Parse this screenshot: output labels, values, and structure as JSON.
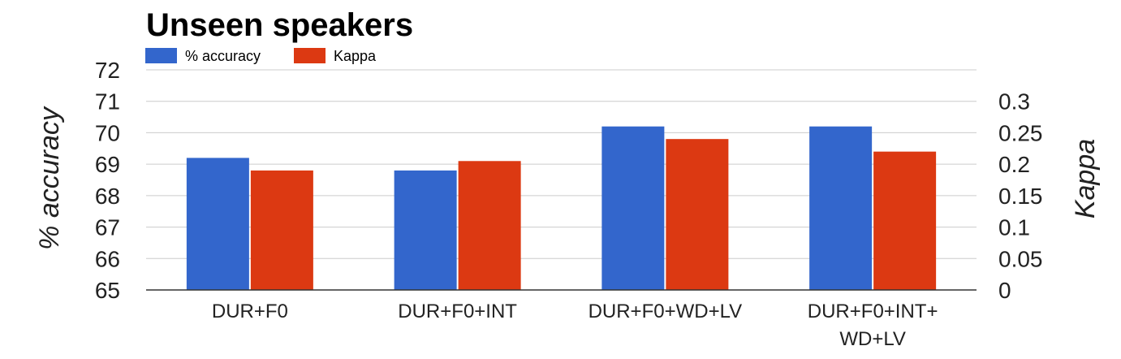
{
  "chart_data": {
    "type": "bar",
    "title": "Unseen speakers",
    "categories": [
      [
        "DUR+F0"
      ],
      [
        "DUR+F0+INT"
      ],
      [
        "DUR+F0+WD+LV"
      ],
      [
        "DUR+F0+INT+",
        "WD+LV"
      ]
    ],
    "series": [
      {
        "name": "% accuracy",
        "axis": "left",
        "color": "#3366cc",
        "values": [
          69.2,
          68.8,
          70.2,
          70.2
        ]
      },
      {
        "name": "Kappa",
        "axis": "right",
        "color": "#dc3912",
        "values": [
          0.19,
          0.205,
          0.24,
          0.22
        ]
      }
    ],
    "left_axis": {
      "label": "% accuracy",
      "range": [
        65,
        72
      ],
      "ticks": [
        "65",
        "66",
        "67",
        "68",
        "69",
        "70",
        "71",
        "72"
      ]
    },
    "right_axis": {
      "label": "Kappa",
      "range": [
        0,
        0.35
      ],
      "ticks": [
        "0",
        "0.05",
        "0.1",
        "0.15",
        "0.2",
        "0.25",
        "0.3"
      ]
    },
    "grid": true,
    "legend_position": "top-left"
  }
}
